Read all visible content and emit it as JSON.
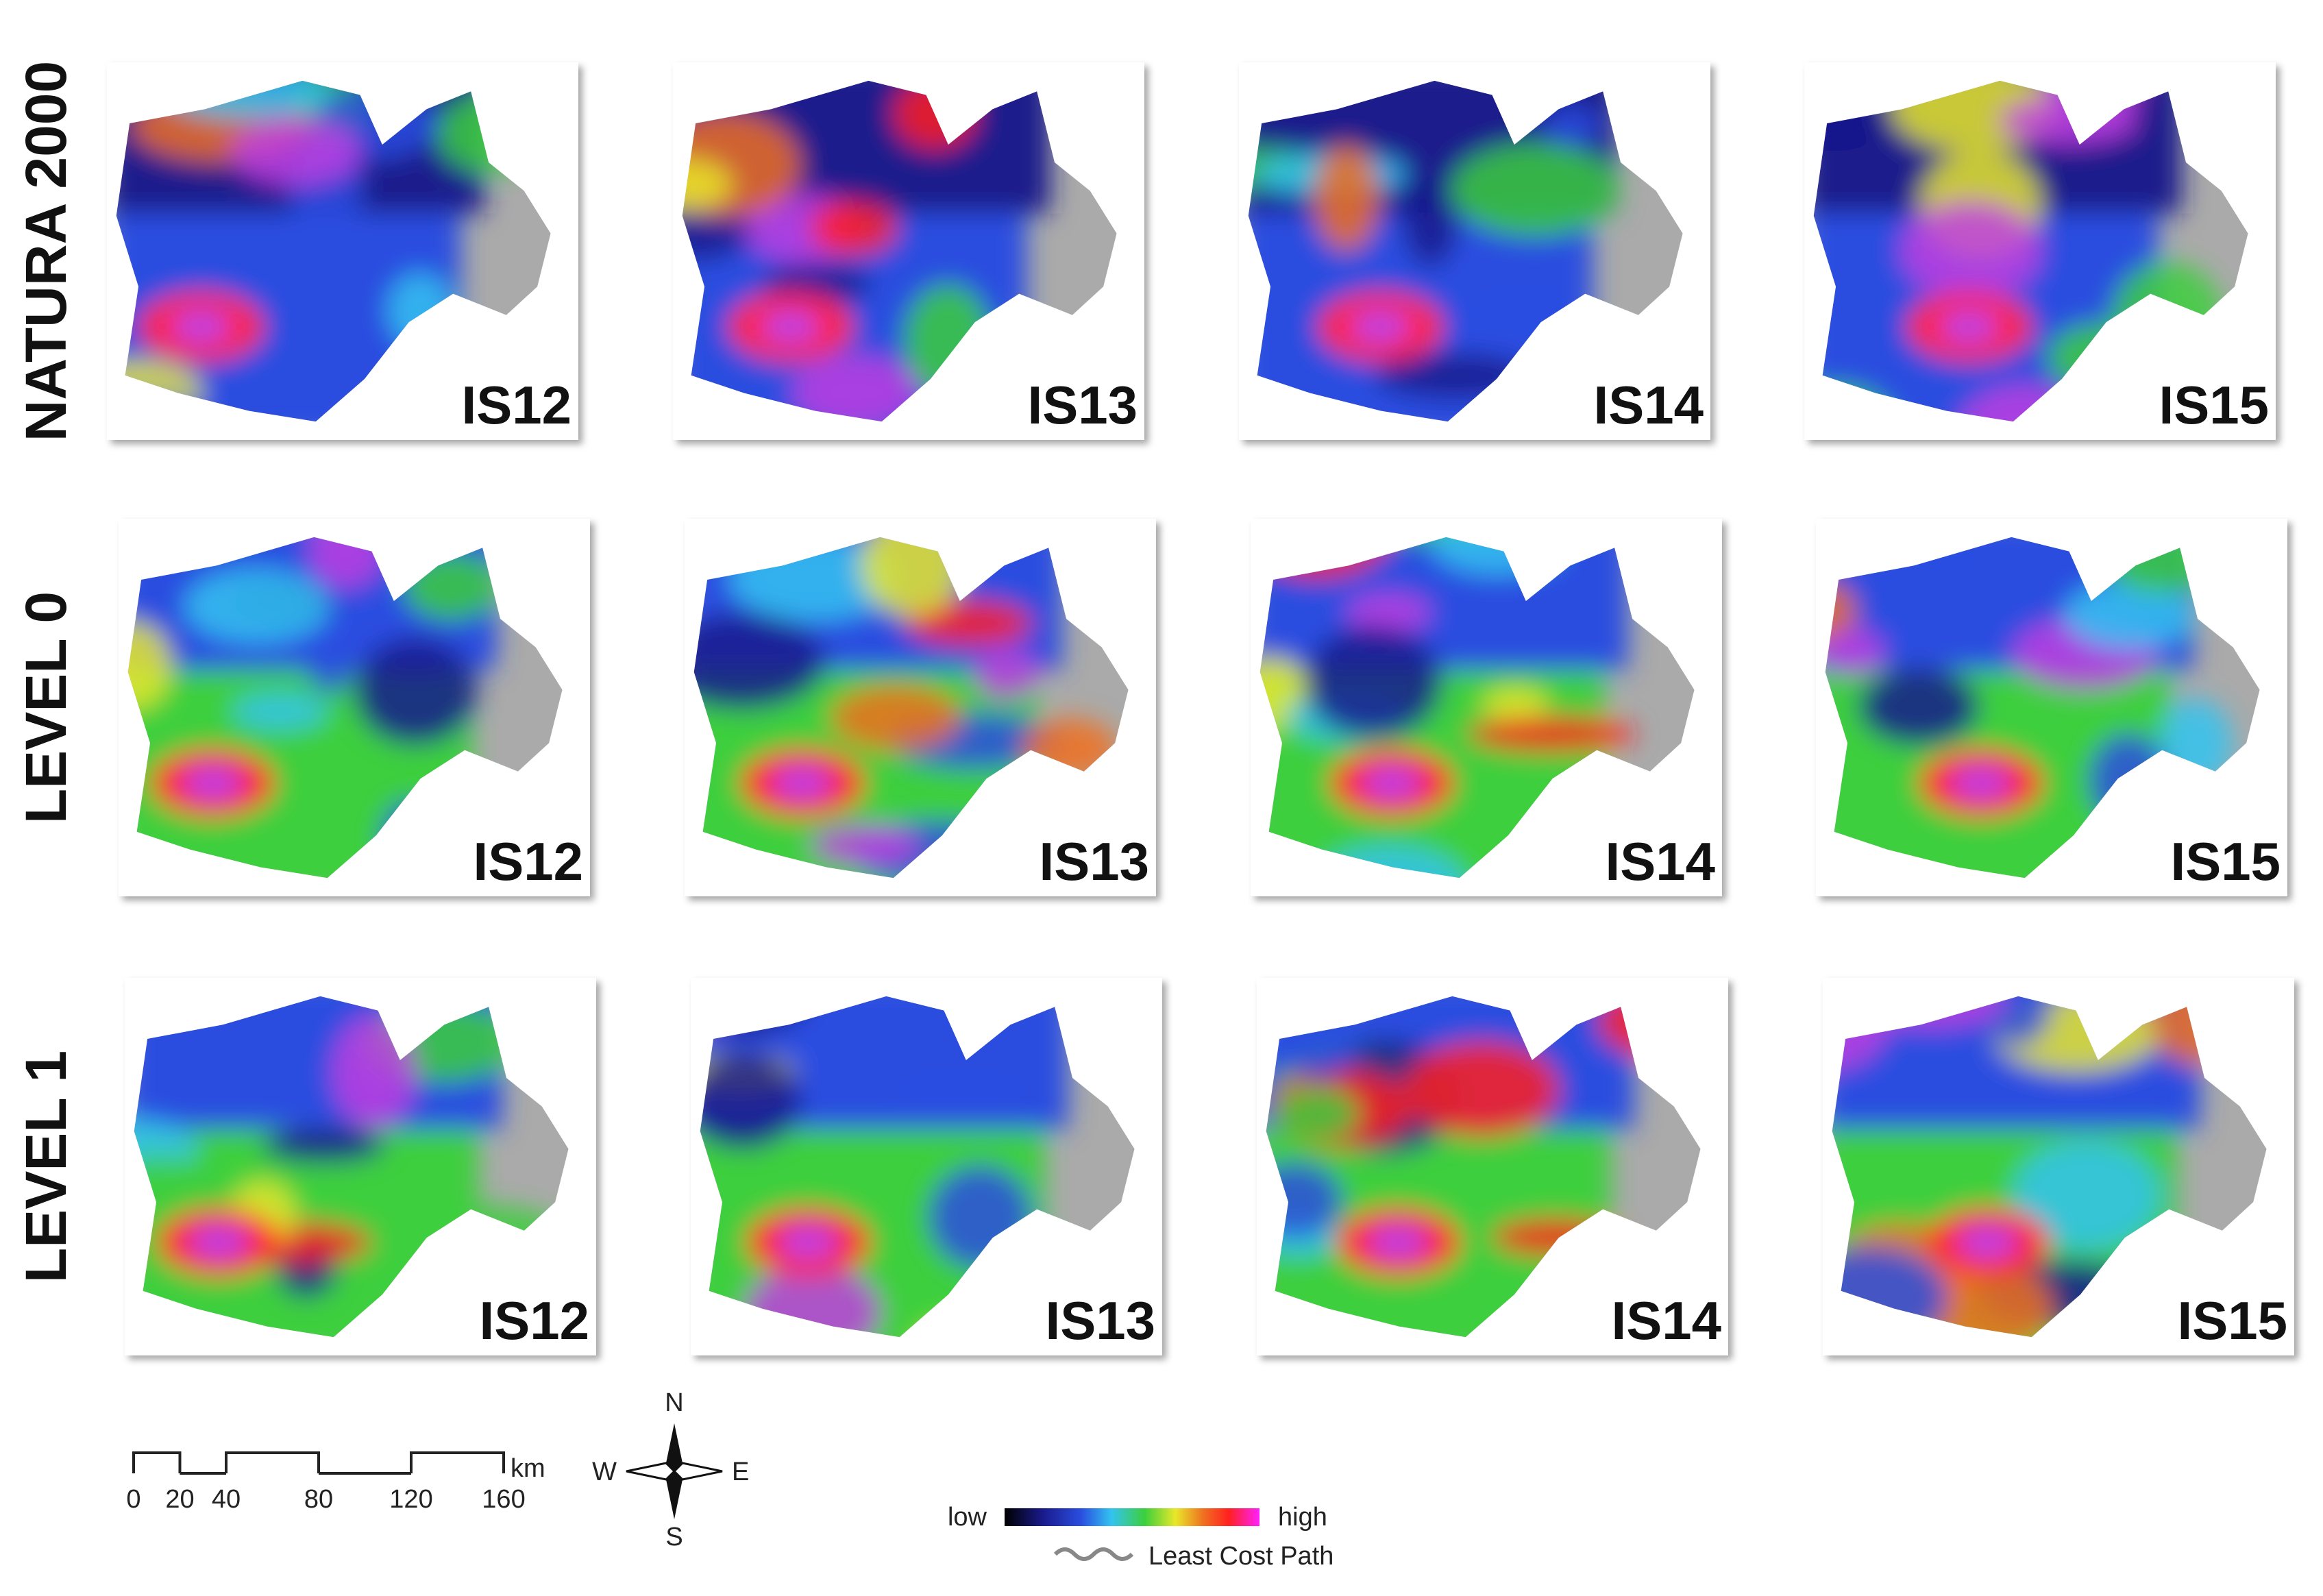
{
  "rows": [
    {
      "label": "NATURA 2000",
      "panels": [
        "IS12",
        "IS13",
        "IS14",
        "IS15"
      ]
    },
    {
      "label": "LEVEL 0",
      "panels": [
        "IS12",
        "IS13",
        "IS14",
        "IS15"
      ]
    },
    {
      "label": "LEVEL 1",
      "panels": [
        "IS12",
        "IS13",
        "IS14",
        "IS15"
      ]
    }
  ],
  "scale_bar": {
    "ticks": [
      0,
      20,
      40,
      80,
      120,
      160
    ],
    "unit": "km"
  },
  "compass": {
    "n": "N",
    "s": "S",
    "w": "W",
    "e": "E"
  },
  "legend": {
    "low": "low",
    "high": "high",
    "path": "Least Cost Path"
  }
}
